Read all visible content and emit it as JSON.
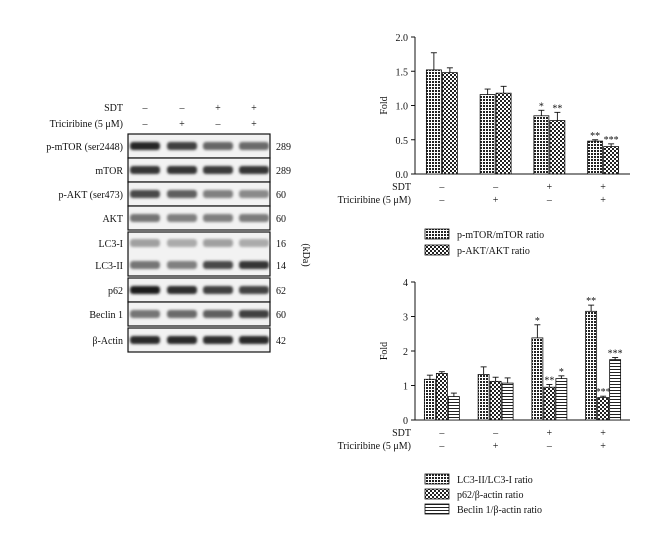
{
  "western_blot": {
    "conditions": {
      "labels": [
        "SDT",
        "Triciribine (5 μM)"
      ],
      "values": [
        [
          "–",
          "–",
          "+",
          "+"
        ],
        [
          "–",
          "+",
          "–",
          "+"
        ]
      ]
    },
    "kda_label": "(kDa)",
    "rows": [
      {
        "label": "p-mTOR (ser2448)",
        "kda": "289",
        "intensity": [
          0.92,
          0.8,
          0.62,
          0.6
        ]
      },
      {
        "label": "mTOR",
        "kda": "289",
        "intensity": [
          0.85,
          0.85,
          0.82,
          0.84
        ]
      },
      {
        "label": "p-AKT (ser473)",
        "kda": "60",
        "intensity": [
          0.75,
          0.65,
          0.5,
          0.45
        ]
      },
      {
        "label": "AKT",
        "kda": "60",
        "intensity": [
          0.55,
          0.5,
          0.5,
          0.52
        ]
      },
      {
        "label": "LC3-I",
        "kda": "16",
        "intensity": [
          0.35,
          0.3,
          0.35,
          0.3
        ]
      },
      {
        "label": "LC3-II",
        "kda": "14",
        "intensity": [
          0.55,
          0.5,
          0.75,
          0.85
        ]
      },
      {
        "label": "p62",
        "kda": "62",
        "intensity": [
          0.95,
          0.88,
          0.8,
          0.78
        ]
      },
      {
        "label": "Beclin 1",
        "kda": "60",
        "intensity": [
          0.55,
          0.6,
          0.65,
          0.8
        ]
      },
      {
        "label": "β-Actin",
        "kda": "42",
        "intensity": [
          0.9,
          0.9,
          0.88,
          0.9
        ]
      }
    ]
  },
  "chart_data": [
    {
      "type": "bar",
      "ylabel": "Fold",
      "ylim": [
        0,
        2.0
      ],
      "yticks": [
        "0.0",
        "0.5",
        "1.0",
        "1.5",
        "2.0"
      ],
      "group_conditions": {
        "labels": [
          "SDT",
          "Triciribine (5 μM)"
        ],
        "values": [
          [
            "–",
            "–",
            "+",
            "+"
          ],
          [
            "–",
            "+",
            "–",
            "+"
          ]
        ]
      },
      "series": [
        {
          "name": "p-mTOR/mTOR ratio",
          "values": [
            1.52,
            1.16,
            0.85,
            0.48
          ],
          "errors": [
            0.25,
            0.08,
            0.08,
            0.02
          ],
          "significance": [
            "",
            "",
            "*",
            "**"
          ],
          "pattern": "dense-dots"
        },
        {
          "name": "p-AKT/AKT ratio",
          "values": [
            1.48,
            1.18,
            0.78,
            0.4
          ],
          "errors": [
            0.07,
            0.1,
            0.12,
            0.04
          ],
          "significance": [
            "",
            "",
            "**",
            "***"
          ],
          "pattern": "checker"
        }
      ],
      "legend_position": "bottom"
    },
    {
      "type": "bar",
      "ylabel": "Fold",
      "ylim": [
        0,
        4
      ],
      "yticks": [
        "0",
        "1",
        "2",
        "3",
        "4"
      ],
      "group_conditions": {
        "labels": [
          "SDT",
          "Triciribine (5 μM)"
        ],
        "values": [
          [
            "–",
            "–",
            "+",
            "+"
          ],
          [
            "–",
            "+",
            "–",
            "+"
          ]
        ]
      },
      "series": [
        {
          "name": "LC3-II/LC3-I ratio",
          "values": [
            1.18,
            1.32,
            2.38,
            3.15
          ],
          "errors": [
            0.12,
            0.22,
            0.38,
            0.18
          ],
          "significance": [
            "",
            "",
            "*",
            "**"
          ],
          "pattern": "dense-dots"
        },
        {
          "name": "p62/β-actin ratio",
          "values": [
            1.35,
            1.12,
            0.95,
            0.65
          ],
          "errors": [
            0.05,
            0.12,
            0.08,
            0.04
          ],
          "significance": [
            "",
            "",
            "**",
            "***"
          ],
          "pattern": "checker"
        },
        {
          "name": "Beclin 1/β-actin ratio",
          "values": [
            0.68,
            1.07,
            1.2,
            1.75
          ],
          "errors": [
            0.1,
            0.15,
            0.08,
            0.06
          ],
          "significance": [
            "",
            "",
            "*",
            "***"
          ],
          "pattern": "hlines"
        }
      ],
      "legend_position": "bottom"
    }
  ]
}
